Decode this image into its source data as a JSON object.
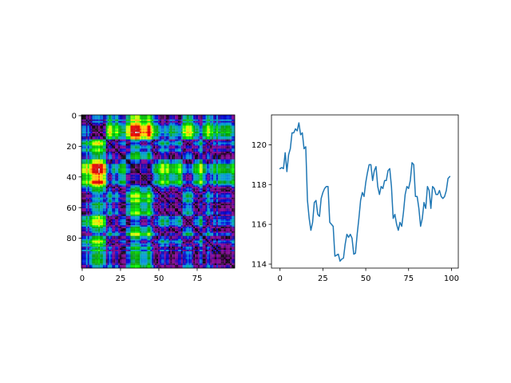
{
  "chart_data": [
    {
      "type": "heatmap",
      "colormap": "nipy_spectral",
      "rows": 100,
      "cols": 100,
      "xlim": [
        0,
        99
      ],
      "ylim": [
        99,
        0
      ],
      "xticks": [
        0,
        25,
        50,
        75
      ],
      "yticks": [
        0,
        20,
        40,
        60,
        80
      ],
      "grid": false,
      "values_source": "recurrence matrix |y[i] - y[j]| of the line series in chart 2"
    },
    {
      "type": "line",
      "color": "#1f77b4",
      "xlim": [
        -5,
        104
      ],
      "ylim": [
        113.8,
        121.5
      ],
      "xticks": [
        0,
        25,
        50,
        75,
        100
      ],
      "yticks": [
        114,
        116,
        118,
        120
      ],
      "grid": false,
      "x": [
        0,
        1,
        2,
        3,
        4,
        5,
        6,
        7,
        8,
        9,
        10,
        11,
        12,
        13,
        14,
        15,
        16,
        17,
        18,
        19,
        20,
        21,
        22,
        23,
        24,
        25,
        26,
        27,
        28,
        29,
        30,
        31,
        32,
        33,
        34,
        35,
        36,
        37,
        38,
        39,
        40,
        41,
        42,
        43,
        44,
        45,
        46,
        47,
        48,
        49,
        50,
        51,
        52,
        53,
        54,
        55,
        56,
        57,
        58,
        59,
        60,
        61,
        62,
        63,
        64,
        65,
        66,
        67,
        68,
        69,
        70,
        71,
        72,
        73,
        74,
        75,
        76,
        77,
        78,
        79,
        80,
        81,
        82,
        83,
        84,
        85,
        86,
        87,
        88,
        89,
        90,
        91,
        92,
        93,
        94,
        95,
        96,
        97,
        98,
        99
      ],
      "y": [
        118.8,
        118.85,
        118.8,
        119.6,
        118.65,
        119.5,
        119.8,
        120.6,
        120.6,
        120.8,
        120.7,
        121.1,
        120.5,
        120.6,
        119.8,
        119.9,
        117.2,
        116.3,
        115.7,
        116.1,
        117.1,
        117.2,
        116.5,
        116.4,
        117.3,
        117.6,
        117.8,
        117.9,
        117.9,
        116.1,
        116.0,
        115.9,
        114.4,
        114.45,
        114.5,
        114.15,
        114.25,
        114.3,
        115.0,
        115.5,
        115.35,
        115.5,
        115.3,
        114.5,
        114.55,
        115.5,
        116.3,
        117.2,
        117.6,
        117.4,
        118.1,
        118.6,
        119.0,
        119.0,
        118.2,
        118.7,
        118.9,
        117.9,
        117.5,
        117.9,
        117.8,
        118.2,
        118.2,
        118.7,
        118.8,
        117.9,
        116.3,
        116.5,
        116.0,
        115.7,
        116.1,
        115.9,
        116.6,
        117.5,
        117.9,
        117.8,
        118.2,
        119.1,
        119.0,
        117.4,
        117.4,
        116.8,
        115.9,
        116.3,
        117.1,
        116.8,
        117.9,
        117.7,
        116.8,
        117.9,
        117.8,
        117.5,
        117.5,
        117.7,
        117.4,
        117.3,
        117.4,
        117.7,
        118.3,
        118.4
      ]
    }
  ]
}
